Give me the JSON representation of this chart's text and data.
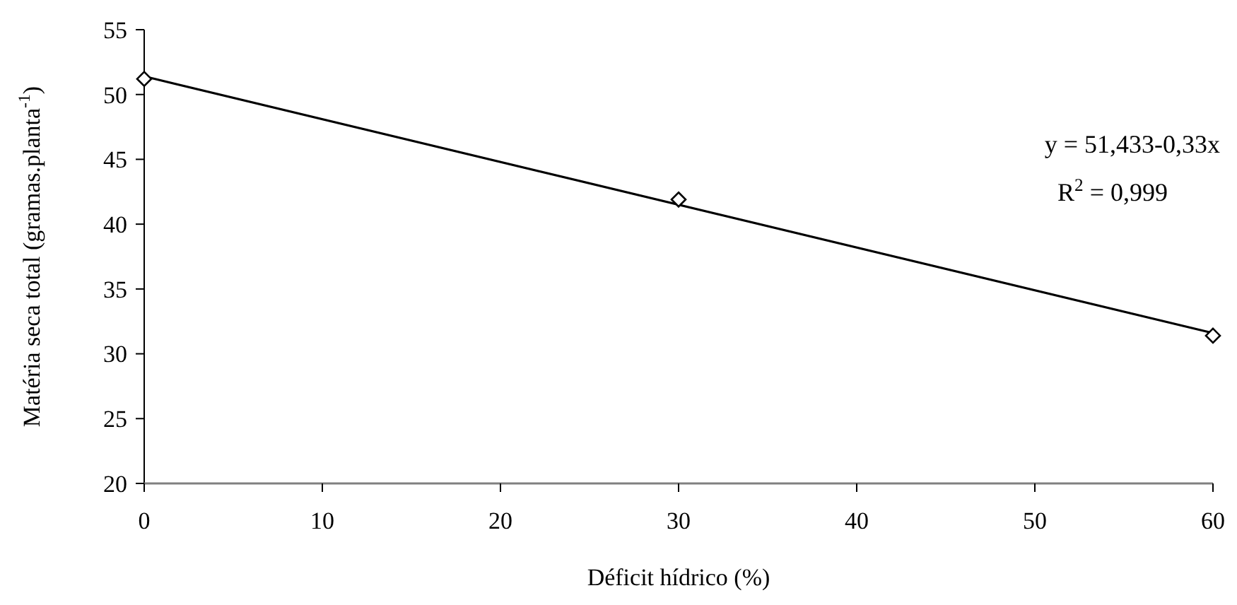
{
  "chart_data": {
    "type": "scatter",
    "xlabel": "Déficit hídrico (%)",
    "ylabel": "Matéria seca total (gramas.planta$^{-1}$)",
    "x": [
      0,
      30,
      60
    ],
    "series": [
      {
        "color": "#000000",
        "marker": "diamond",
        "values": [
          51.2,
          41.9,
          31.4
        ]
      },
      {
        "type": "line",
        "color": "#000000",
        "marker": "none",
        "line_style": "solid",
        "x": [
          0,
          60
        ],
        "values": [
          51.4,
          31.6
        ]
      }
    ],
    "xlim": [
      0,
      60
    ],
    "xticks": [
      0,
      10,
      20,
      30,
      40,
      50,
      60
    ],
    "ylim": [
      20,
      55
    ],
    "yticks": [
      20,
      25,
      30,
      35,
      40,
      45,
      50,
      55
    ],
    "grid": false,
    "annotations": [
      "y =  51,433-0,33x",
      "R$^{2}$ = 0,999"
    ]
  }
}
